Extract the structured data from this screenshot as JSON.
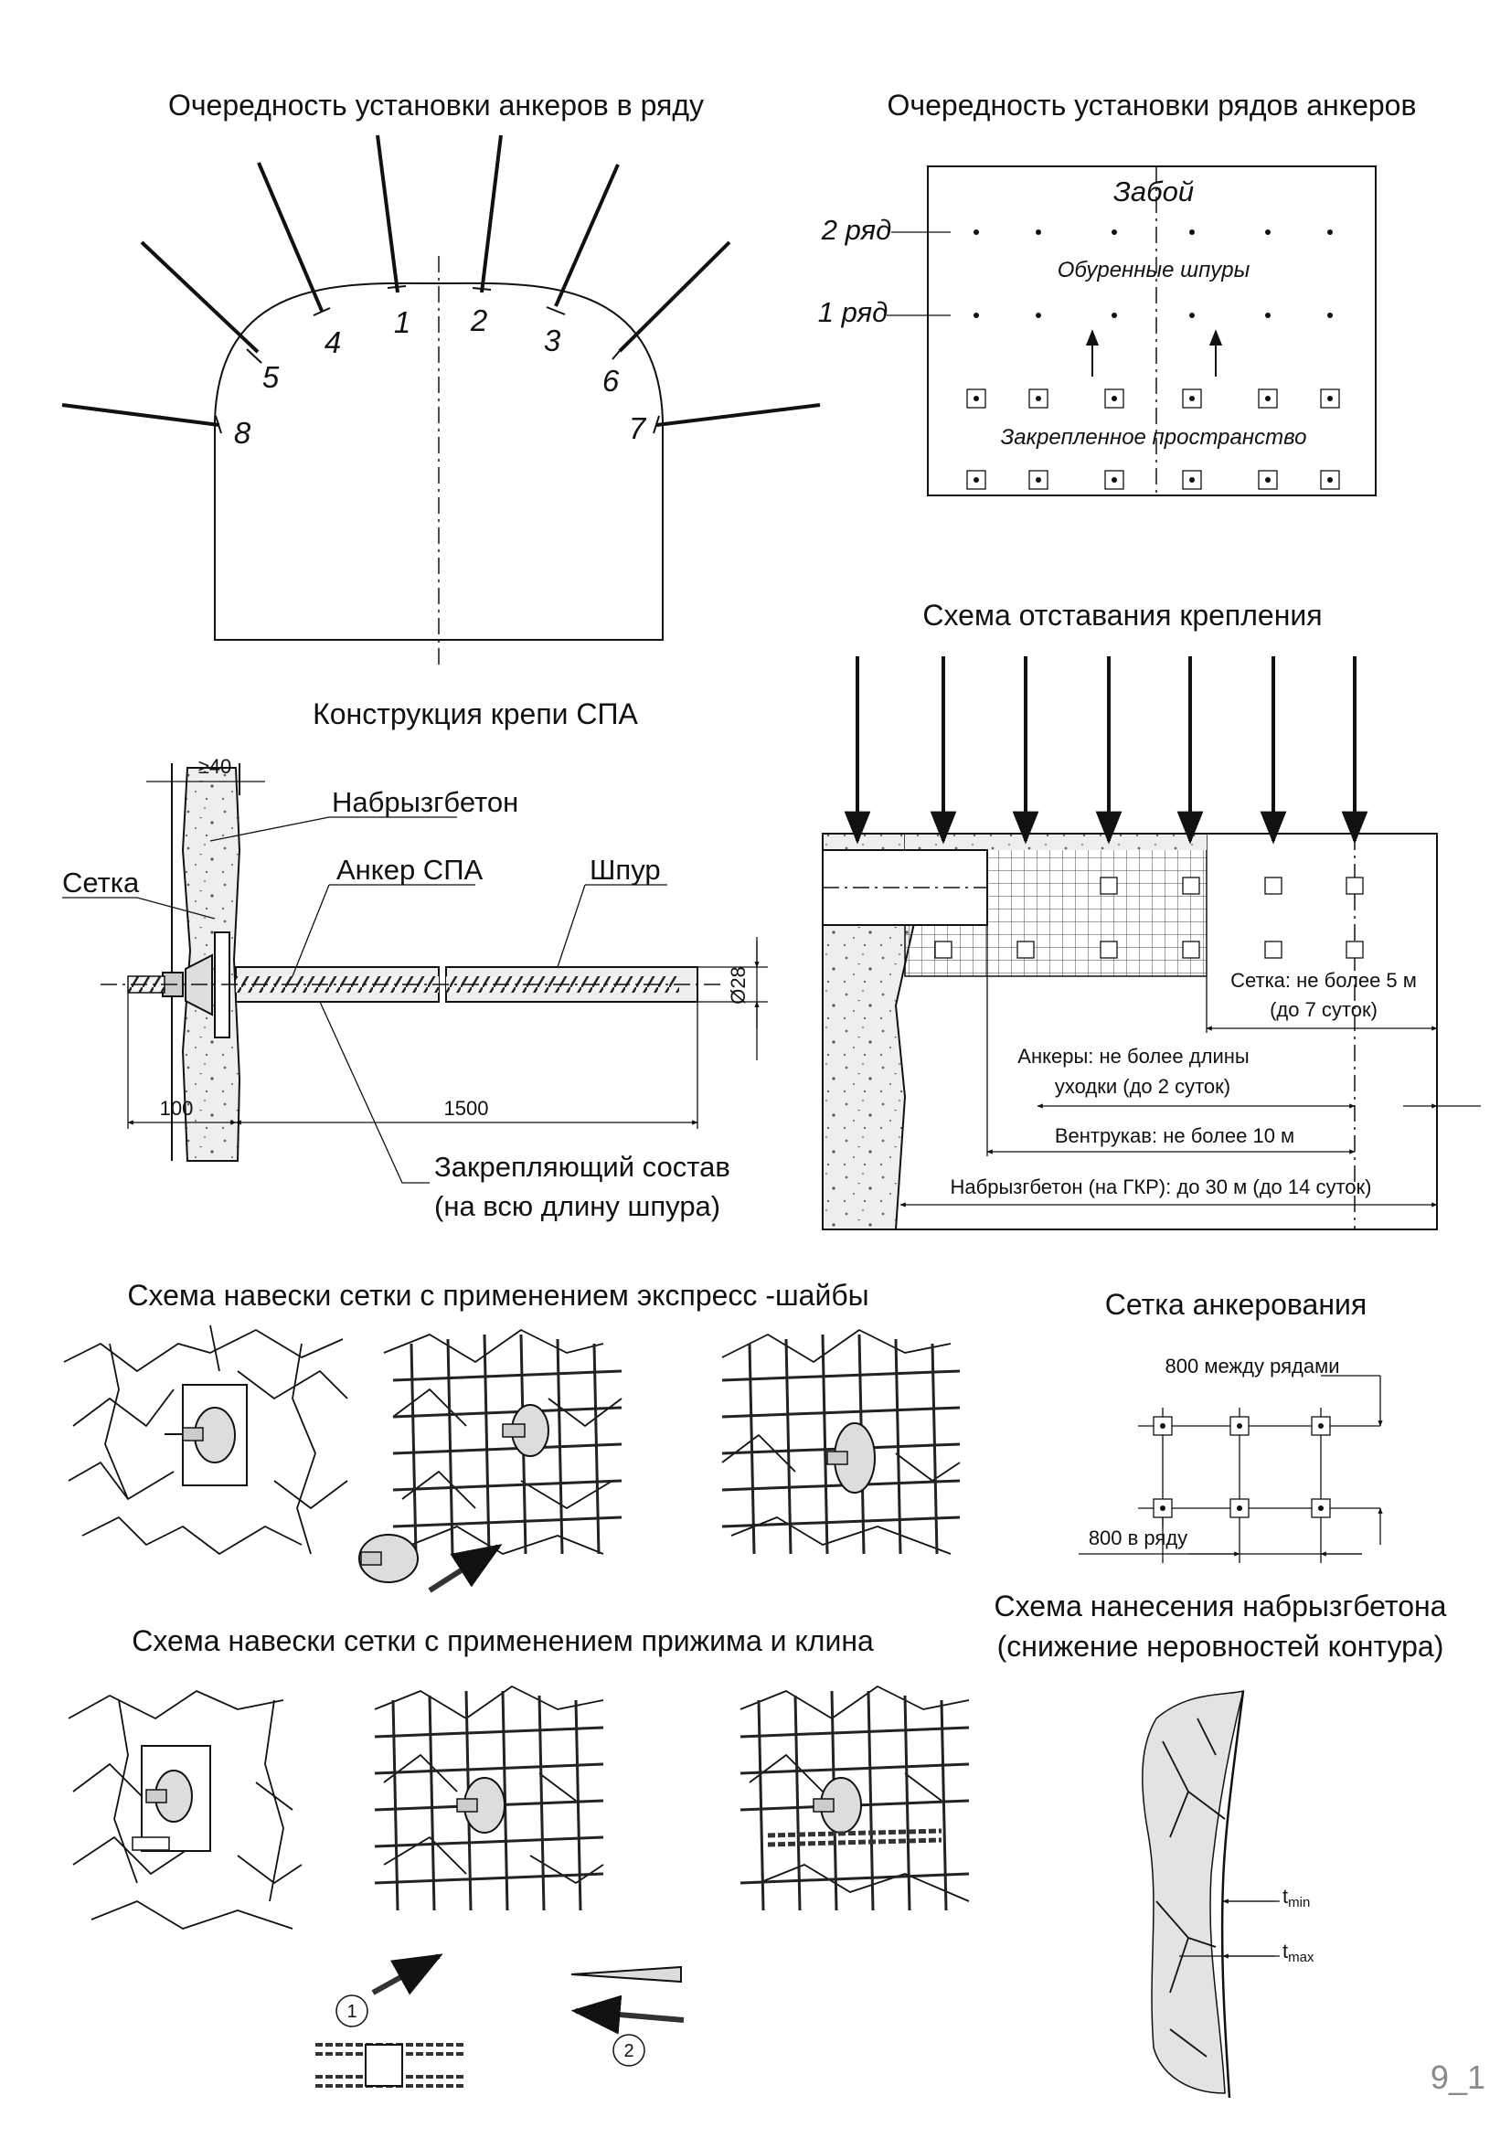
{
  "titles": {
    "anchor_order": "Очередность установки анкеров в ряду",
    "row_order": "Очередность установки рядов анкеров",
    "lag_scheme": "Схема отставания крепления",
    "spa_design": "Конструкция крепи СПА",
    "express_washer": "Схема навески сетки с применением экспресс -шайбы",
    "anchor_grid": "Сетка анкерования",
    "clamp_wedge": "Схема навески сетки с применением прижима и клина",
    "shotcrete_scheme_1": "Схема нанесения набрызгбетона",
    "shotcrete_scheme_2": "(снижение неровностей контура)"
  },
  "anchor_numbers": [
    "1",
    "2",
    "3",
    "4",
    "5",
    "6",
    "7",
    "8"
  ],
  "row_order": {
    "face": "Забой",
    "row2": "2 ряд",
    "row1": "1 ряд",
    "drilled": "Обуренные шпуры",
    "secured": "Закрепленное пространство"
  },
  "spa": {
    "dim_top": "≥40",
    "shotcrete": "Набрызгбетон",
    "mesh": "Сетка",
    "anchor": "Анкер СПА",
    "hole": "Шпур",
    "diameter": "Ø28",
    "dim_100": "100",
    "dim_1500": "1500",
    "grout_1": "Закрепляющий состав",
    "grout_2": "(на всю длину шпура)"
  },
  "lag": {
    "mesh_1": "Сетка: не более 5 м",
    "mesh_2": "(до 7 суток)",
    "anchors_1": "Анкеры: не более длины",
    "anchors_2": "уходки (до 2 суток)",
    "vent": "Вентрукав: не более 10 м",
    "shotcrete": "Набрызгбетон (на ГКР): до 30 м (до 14 суток)"
  },
  "grid": {
    "between_rows": "800 между рядами",
    "in_row": "800 в ряду"
  },
  "shotcrete_labels": {
    "tmin": "t",
    "tmin_sub": "min",
    "tmax": "t",
    "tmax_sub": "max"
  },
  "steps": [
    "1",
    "2"
  ],
  "page_number": "9_1"
}
